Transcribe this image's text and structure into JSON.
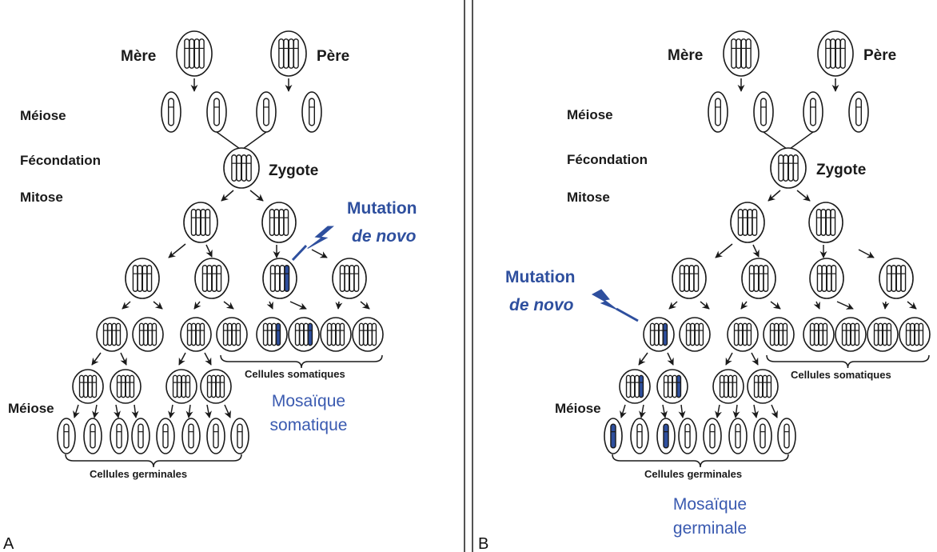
{
  "panel_a": {
    "letter": "A",
    "mere": "Mère",
    "pere": "Père",
    "meiose_top": "Méiose",
    "fecondation": "Fécondation",
    "mitose": "Mitose",
    "zygote": "Zygote",
    "mutation_line1": "Mutation",
    "mutation_line2": "de novo",
    "cellules_somatiques": "Cellules somatiques",
    "mosaique_line1": "Mosaïque",
    "mosaique_line2": "somatique",
    "meiose_bottom": "Méiose",
    "cellules_germinales": "Cellules germinales"
  },
  "panel_b": {
    "letter": "B",
    "mere": "Mère",
    "pere": "Père",
    "meiose_top": "Méiose",
    "fecondation": "Fécondation",
    "mitose": "Mitose",
    "zygote": "Zygote",
    "mutation_line1": "Mutation",
    "mutation_line2": "de novo",
    "cellules_somatiques": "Cellules somatiques",
    "mosaique_line1": "Mosaïque",
    "mosaique_line2": "germinale",
    "meiose_bottom": "Méiose",
    "cellules_germinales": "Cellules germinales"
  },
  "colors": {
    "mutation": "#2e4f9e",
    "line": "#1a1a1a",
    "background": "#ffffff"
  },
  "icons": [
    "lightning-bolt-icon",
    "arrow-icon",
    "chromosome-cell-icon"
  ]
}
